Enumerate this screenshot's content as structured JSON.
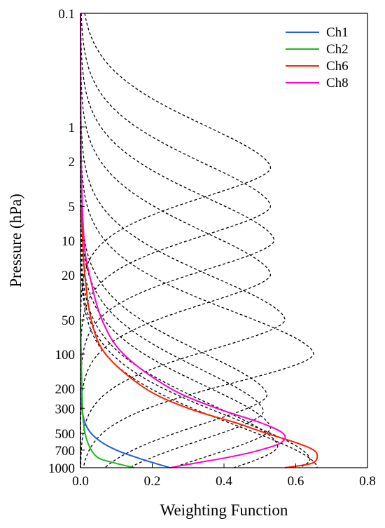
{
  "chart_data": {
    "type": "line",
    "title": "",
    "xlabel": "Weighting Function",
    "ylabel": "Pressure (hPa)",
    "xlim": [
      0,
      0.8
    ],
    "ylim": [
      1000,
      0.1
    ],
    "yscale": "log",
    "grid": false,
    "legend": "top-right",
    "x_ticks": [
      "0.0",
      "0.2",
      "0.4",
      "0.6",
      "0.8"
    ],
    "y_ticks": [
      "0.1",
      "1",
      "2",
      "5",
      "10",
      "20",
      "50",
      "100",
      "200",
      "300",
      "500",
      "700",
      "1000"
    ],
    "dashed_curves": [
      {
        "peak_value": 0.53,
        "peak_pressure": 2.3
      },
      {
        "peak_value": 0.53,
        "peak_pressure": 5
      },
      {
        "peak_value": 0.54,
        "peak_pressure": 10
      },
      {
        "peak_value": 0.53,
        "peak_pressure": 20
      },
      {
        "peak_value": 0.57,
        "peak_pressure": 50
      },
      {
        "peak_value": 0.65,
        "peak_pressure": 100
      },
      {
        "peak_value": 0.52,
        "peak_pressure": 230
      },
      {
        "peak_value": 0.51,
        "peak_pressure": 320
      },
      {
        "peak_value": 0.53,
        "peak_pressure": 450
      },
      {
        "peak_value": 0.55,
        "peak_pressure": 650
      },
      {
        "peak_value": 0.64,
        "peak_pressure": 850
      },
      {
        "peak_value": 0.66,
        "peak_pressure": 1000
      }
    ],
    "series": [
      {
        "name": "Ch1",
        "color": "#1f5fe0",
        "points": [
          [
            0.0,
            200
          ],
          [
            0.004,
            300
          ],
          [
            0.012,
            400
          ],
          [
            0.03,
            500
          ],
          [
            0.06,
            600
          ],
          [
            0.1,
            700
          ],
          [
            0.15,
            800
          ],
          [
            0.2,
            900
          ],
          [
            0.25,
            1000
          ]
        ]
      },
      {
        "name": "Ch2",
        "color": "#1fb81f",
        "points": [
          [
            0.0,
            50
          ],
          [
            0.004,
            200
          ],
          [
            0.008,
            400
          ],
          [
            0.02,
            600
          ],
          [
            0.045,
            800
          ],
          [
            0.09,
            900
          ],
          [
            0.15,
            1000
          ]
        ]
      },
      {
        "name": "Ch6",
        "color": "#ff2000",
        "points": [
          [
            0.002,
            5
          ],
          [
            0.006,
            10
          ],
          [
            0.012,
            20
          ],
          [
            0.03,
            50
          ],
          [
            0.07,
            100
          ],
          [
            0.18,
            200
          ],
          [
            0.3,
            300
          ],
          [
            0.43,
            400
          ],
          [
            0.52,
            500
          ],
          [
            0.6,
            600
          ],
          [
            0.65,
            700
          ],
          [
            0.66,
            800
          ],
          [
            0.65,
            900
          ],
          [
            0.62,
            950
          ],
          [
            0.57,
            1000
          ]
        ]
      },
      {
        "name": "Ch8",
        "color": "#ff00cc",
        "points": [
          [
            0.0,
            0.1
          ],
          [
            0.002,
            2
          ],
          [
            0.01,
            10
          ],
          [
            0.025,
            20
          ],
          [
            0.06,
            50
          ],
          [
            0.12,
            100
          ],
          [
            0.25,
            200
          ],
          [
            0.38,
            300
          ],
          [
            0.5,
            400
          ],
          [
            0.565,
            500
          ],
          [
            0.56,
            600
          ],
          [
            0.5,
            700
          ],
          [
            0.42,
            800
          ],
          [
            0.33,
            900
          ],
          [
            0.25,
            1000
          ]
        ]
      }
    ]
  }
}
